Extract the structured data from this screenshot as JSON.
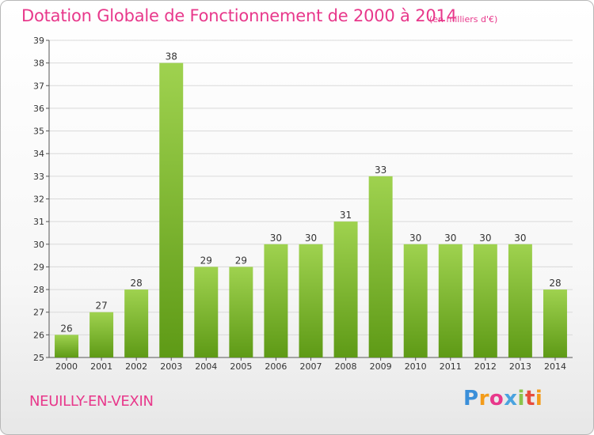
{
  "header": {
    "title": "Dotation Globale de Fonctionnement de 2000 à 2014",
    "subtitle": "(en milliers d'€)"
  },
  "footer": {
    "commune": "NEUILLY-EN-VEXIN",
    "logo_text": "Proxiti"
  },
  "colors": {
    "title": "#e8388b",
    "bar_top": "#9fd24f",
    "bar_bottom": "#5e9a16",
    "grid": "#d9d9d9"
  },
  "chart_data": {
    "type": "bar",
    "title": "Dotation Globale de Fonctionnement de 2000 à 2014",
    "subtitle": "(en milliers d'€)",
    "categories": [
      "2000",
      "2001",
      "2002",
      "2003",
      "2004",
      "2005",
      "2006",
      "2007",
      "2008",
      "2009",
      "2010",
      "2011",
      "2012",
      "2013",
      "2014"
    ],
    "values": [
      26,
      27,
      28,
      38,
      29,
      29,
      30,
      30,
      31,
      33,
      30,
      30,
      30,
      30,
      28
    ],
    "ylim": [
      25,
      39
    ],
    "yticks": [
      25,
      26,
      27,
      28,
      29,
      30,
      31,
      32,
      33,
      34,
      35,
      36,
      37,
      38,
      39
    ],
    "grid": true,
    "data_labels": true,
    "legend": "none"
  }
}
